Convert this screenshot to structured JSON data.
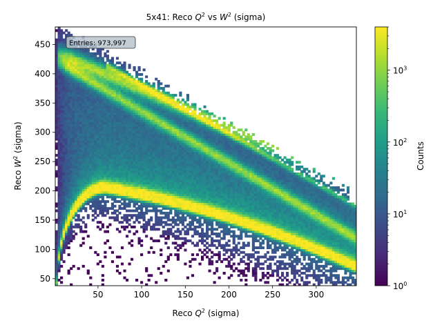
{
  "chart_data": {
    "type": "heatmap",
    "title_prefix": "5x41: Reco ",
    "title_q": "Q",
    "title_mid": " vs ",
    "title_w": "W",
    "title_suffix": " (sigma)",
    "xlabel_prefix": "Reco ",
    "xlabel_var": "Q",
    "xlabel_suffix": " (sigma)",
    "ylabel_prefix": "Reco ",
    "ylabel_var": "W",
    "ylabel_suffix": " (sigma)",
    "superscript": "2",
    "xlim": [
      1,
      346
    ],
    "ylim": [
      38,
      480
    ],
    "x_ticks": [
      50,
      100,
      150,
      200,
      250,
      300
    ],
    "y_ticks": [
      50,
      100,
      150,
      200,
      250,
      300,
      350,
      400,
      450
    ],
    "entries_label": "Entries: 973,997",
    "colorbar": {
      "label": "Counts",
      "scale": "log",
      "range": [
        1,
        4000
      ],
      "major_tick_base": "10",
      "major_tick_exponents": [
        "0",
        "1",
        "2",
        "3"
      ],
      "colormap": "viridis",
      "colors": [
        "#440154",
        "#482878",
        "#3e4989",
        "#31688e",
        "#26828e",
        "#1f9e89",
        "#35b779",
        "#6ece58",
        "#b5de2b",
        "#fde725"
      ]
    },
    "features": [
      {
        "shape": "curved ridge",
        "from": [
          3,
          40
        ],
        "peak": [
          58,
          203
        ],
        "to": [
          346,
          68
        ],
        "peak_counts": 3000
      },
      {
        "shape": "band",
        "from": [
          5,
          435
        ],
        "to": [
          346,
          215
        ],
        "peak_counts": 400
      },
      {
        "shape": "band",
        "from": [
          5,
          420
        ],
        "to": [
          346,
          120
        ],
        "peak_counts": 300
      },
      {
        "shape": "band",
        "from": [
          60,
          415
        ],
        "to": [
          346,
          175
        ],
        "peak_counts": 80
      }
    ]
  }
}
